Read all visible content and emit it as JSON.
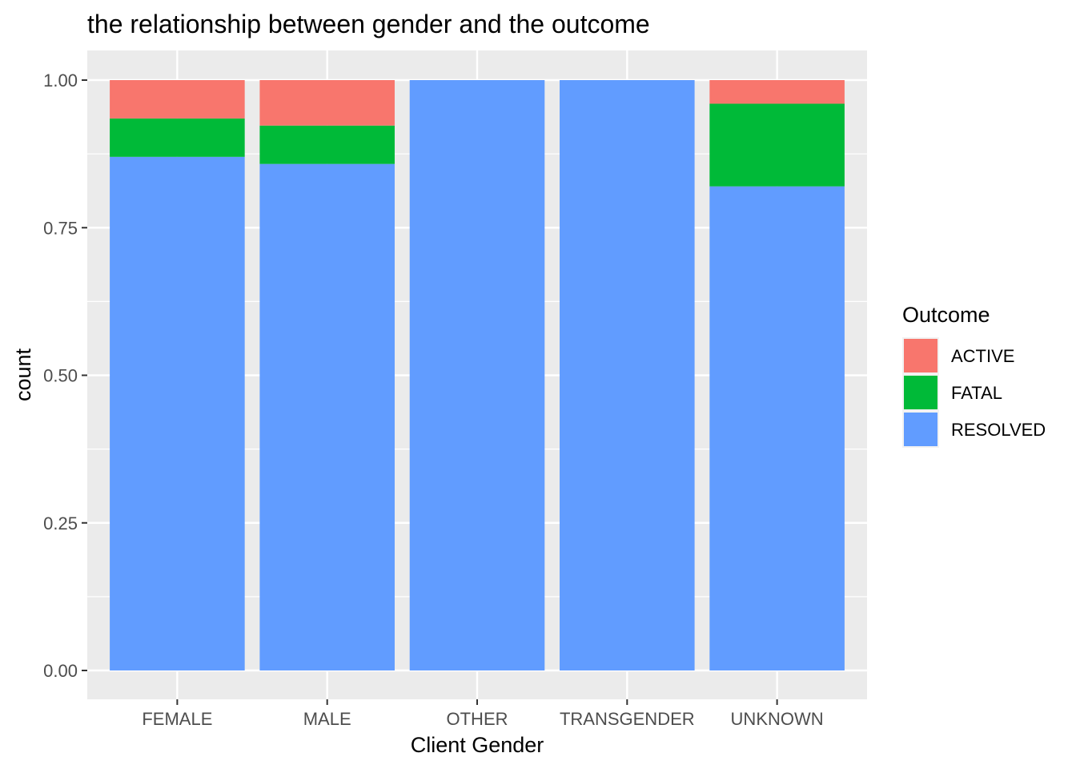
{
  "chart_data": {
    "type": "bar",
    "stacked": true,
    "title": "the relationship between gender and the outcome",
    "xlabel": "Client Gender",
    "ylabel": "count",
    "ylim": [
      0,
      1.0
    ],
    "yticks": [
      "0.00",
      "0.25",
      "0.50",
      "0.75",
      "1.00"
    ],
    "grid": true,
    "legend_position": "right",
    "legend_title": "Outcome",
    "categories": [
      "FEMALE",
      "MALE",
      "OTHER",
      "TRANSGENDER",
      "UNKNOWN"
    ],
    "series": [
      {
        "name": "RESOLVED",
        "color": "#619CFF",
        "values": [
          0.87,
          0.858,
          1.0,
          1.0,
          0.82
        ]
      },
      {
        "name": "FATAL",
        "color": "#00BA38",
        "values": [
          0.065,
          0.065,
          0.0,
          0.0,
          0.14
        ]
      },
      {
        "name": "ACTIVE",
        "color": "#F8766D",
        "values": [
          0.065,
          0.077,
          0.0,
          0.0,
          0.04
        ]
      }
    ],
    "legend_order": [
      "ACTIVE",
      "FATAL",
      "RESOLVED"
    ]
  }
}
